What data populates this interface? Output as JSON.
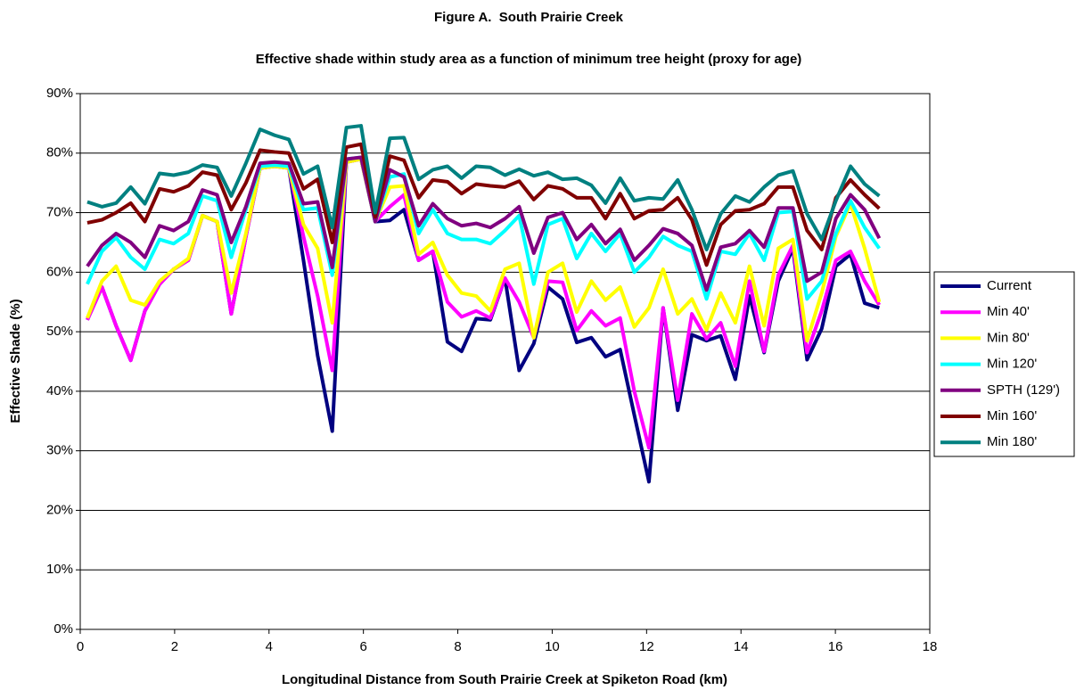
{
  "chart_data": {
    "type": "line",
    "title": "Figure A.  South Prairie Creek",
    "subtitle": "Effective shade within study area as a function of minimum tree height (proxy for age)",
    "x_label": "Longitudinal Distance from South Prairie Creek at Spiketon Road (km)",
    "y_label": "Effective Shade (%)",
    "xlim": [
      0,
      18
    ],
    "xticks": [
      0,
      2,
      4,
      6,
      8,
      10,
      12,
      14,
      16,
      18
    ],
    "ylim": [
      0,
      90
    ],
    "yticks": [
      {
        "value": 0,
        "label": "0%"
      },
      {
        "value": 10,
        "label": "10%"
      },
      {
        "value": 20,
        "label": "20%"
      },
      {
        "value": 30,
        "label": "30%"
      },
      {
        "value": 40,
        "label": "40%"
      },
      {
        "value": 50,
        "label": "50%"
      },
      {
        "value": 60,
        "label": "60%"
      },
      {
        "value": 70,
        "label": "70%"
      },
      {
        "value": 80,
        "label": "80%"
      },
      {
        "value": 90,
        "label": "90%"
      }
    ],
    "grid": true,
    "legend": "right",
    "x": [
      0.15,
      0.46,
      0.76,
      1.07,
      1.37,
      1.68,
      1.98,
      2.29,
      2.59,
      2.9,
      3.2,
      3.51,
      3.81,
      4.12,
      4.42,
      4.73,
      5.03,
      5.34,
      5.64,
      5.95,
      6.25,
      6.56,
      6.86,
      7.17,
      7.47,
      7.78,
      8.08,
      8.39,
      8.69,
      9.0,
      9.3,
      9.61,
      9.91,
      10.22,
      10.52,
      10.83,
      11.13,
      11.44,
      11.74,
      12.05,
      12.35,
      12.66,
      12.96,
      13.27,
      13.57,
      13.88,
      14.18,
      14.49,
      14.79,
      15.1,
      15.4,
      15.71,
      16.01,
      16.32,
      16.62,
      16.93
    ],
    "series": [
      {
        "name": "Current",
        "color": "#000080",
        "values": [
          52,
          57.5,
          51,
          45.2,
          53.5,
          58,
          60.5,
          62,
          69.5,
          68.5,
          53,
          66,
          77.5,
          77.8,
          77.5,
          62,
          46,
          33.3,
          78.5,
          79,
          68.5,
          68.7,
          70.5,
          62,
          63.5,
          48.3,
          46.7,
          52.2,
          52,
          59,
          43.5,
          48,
          57.5,
          55.5,
          48.2,
          49,
          45.8,
          47,
          36,
          24.8,
          54,
          36.8,
          49.5,
          48.5,
          49.3,
          42,
          56,
          46.5,
          58.5,
          64,
          45.3,
          50.5,
          61,
          63,
          54.8,
          54
        ]
      },
      {
        "name": "Min 40'",
        "color": "#ff00ff",
        "values": [
          52,
          57.5,
          51,
          45.2,
          53.5,
          58,
          60.5,
          62,
          69.5,
          68.5,
          53,
          66,
          77.5,
          77.8,
          77.5,
          66,
          56,
          43.5,
          78.5,
          79,
          68.5,
          71,
          73,
          62,
          63.5,
          55,
          52.5,
          53.5,
          52.3,
          59,
          55,
          49,
          58.5,
          58.3,
          50.2,
          53.5,
          51,
          52.3,
          40,
          30.5,
          54,
          38.5,
          53,
          48.8,
          51.5,
          44.2,
          58.5,
          46.7,
          59.5,
          64.5,
          46.5,
          53.5,
          62,
          63.5,
          58.5,
          54.5
        ]
      },
      {
        "name": "Min 80'",
        "color": "#ffff00",
        "values": [
          52.3,
          58.5,
          61,
          55.3,
          54.5,
          58.5,
          60.5,
          62.3,
          69.5,
          68.5,
          56.5,
          66.5,
          77.5,
          77.8,
          77.5,
          68,
          64,
          51.5,
          78.5,
          79,
          68.5,
          74.3,
          74.5,
          63,
          65,
          59.5,
          56.5,
          56,
          53.5,
          60.5,
          61.5,
          49,
          60,
          61.5,
          53.3,
          58.5,
          55.3,
          57.5,
          50.8,
          54,
          60.5,
          53,
          55.5,
          50.3,
          56.5,
          51.5,
          61,
          51,
          64,
          65.5,
          48.5,
          56.5,
          66,
          71.5,
          64,
          55
        ]
      },
      {
        "name": "Min 120'",
        "color": "#00ffff",
        "values": [
          58,
          63.5,
          65.8,
          62.5,
          60.5,
          65.5,
          64.8,
          66.5,
          72.8,
          72,
          62.5,
          70.5,
          77.8,
          78,
          77.8,
          70.5,
          70.8,
          59.5,
          79,
          79.3,
          68.5,
          76,
          76.5,
          66.5,
          70.5,
          66.5,
          65.5,
          65.5,
          64.8,
          67,
          69.5,
          58,
          68,
          69,
          62.3,
          66.5,
          63.5,
          66.5,
          60,
          62.5,
          66,
          64.5,
          63.5,
          55.5,
          63.5,
          63,
          66.5,
          62,
          70,
          70.2,
          55.5,
          58.5,
          66.5,
          72,
          67.5,
          64
        ]
      },
      {
        "name": "SPTH (129')",
        "color": "#800080",
        "values": [
          61,
          64.5,
          66.5,
          65,
          62.5,
          67.8,
          67,
          68.5,
          73.8,
          73,
          65,
          71,
          78.3,
          78.5,
          78.3,
          71.5,
          71.8,
          60.8,
          79,
          79.3,
          68.5,
          77.2,
          76,
          67.8,
          71.5,
          69,
          67.8,
          68.2,
          67.5,
          69,
          71,
          63.2,
          69.2,
          70,
          65.5,
          68,
          64.8,
          67.2,
          62,
          64.5,
          67.3,
          66.5,
          64.5,
          57,
          64.2,
          64.8,
          67,
          64.2,
          70.8,
          70.8,
          58.5,
          60,
          69,
          73,
          70.5,
          65.7
        ]
      },
      {
        "name": "Min 160'",
        "color": "#800000",
        "values": [
          68.3,
          68.8,
          70,
          71.6,
          68.5,
          74,
          73.5,
          74.5,
          76.8,
          76.3,
          70.5,
          75,
          80.5,
          80.2,
          80,
          74,
          75.6,
          65,
          81,
          81.5,
          69.3,
          79.5,
          78.8,
          72.5,
          75.5,
          75.2,
          73.2,
          74.8,
          74.5,
          74.3,
          75.3,
          72.2,
          74.5,
          74,
          72.5,
          72.5,
          69,
          73.2,
          69,
          70.3,
          70.5,
          72.5,
          68.8,
          61.2,
          68,
          70.3,
          70.5,
          71.5,
          74.3,
          74.3,
          67,
          63.8,
          72.5,
          75.5,
          73,
          70.7
        ]
      },
      {
        "name": "Min 180'",
        "color": "#008080",
        "values": [
          71.8,
          71,
          71.6,
          74.3,
          71.5,
          76.6,
          76.3,
          76.8,
          78,
          77.6,
          72.8,
          78.3,
          84,
          83,
          82.3,
          76.5,
          77.8,
          67.5,
          84.3,
          84.6,
          70,
          82.5,
          82.6,
          75.6,
          77.2,
          77.8,
          75.8,
          77.8,
          77.6,
          76.3,
          77.3,
          76.2,
          76.8,
          75.6,
          75.8,
          74.6,
          71.6,
          75.8,
          72,
          72.5,
          72.3,
          75.5,
          70.5,
          63.8,
          69.8,
          72.8,
          71.8,
          74.3,
          76.3,
          77,
          69.8,
          65.5,
          72,
          77.8,
          74.8,
          72.8
        ]
      }
    ]
  }
}
